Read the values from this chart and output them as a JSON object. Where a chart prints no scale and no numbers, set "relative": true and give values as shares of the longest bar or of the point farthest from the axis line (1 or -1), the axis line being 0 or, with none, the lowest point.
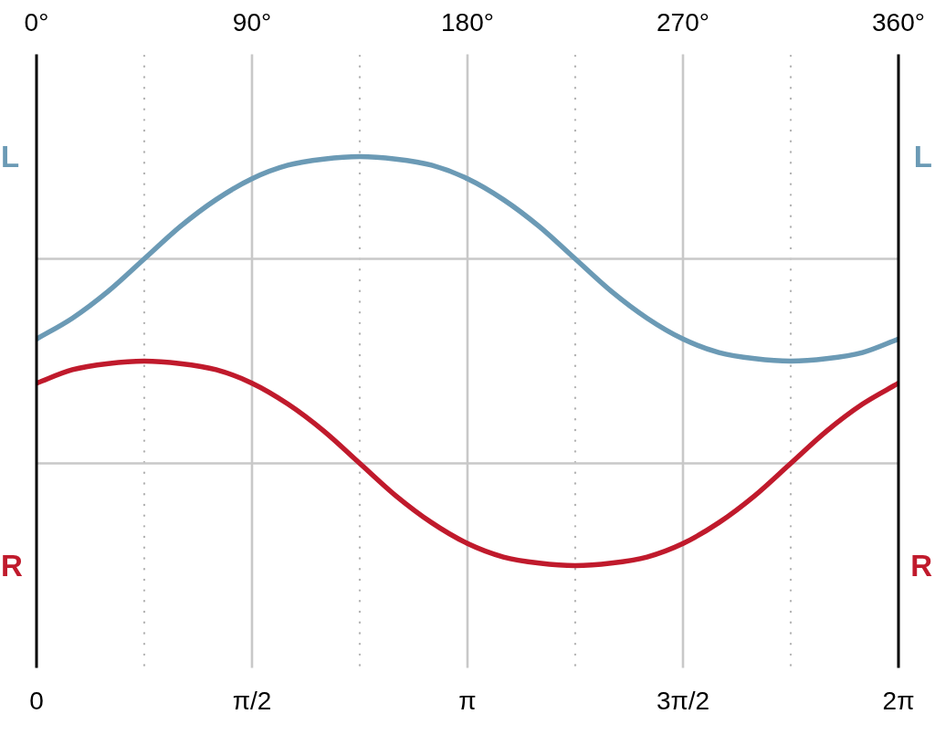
{
  "chart_data": {
    "type": "line",
    "x": [
      0,
      0.2618,
      0.5236,
      0.7854,
      1.0472,
      1.309,
      1.5708,
      1.8326,
      2.0944,
      2.3562,
      2.618,
      2.8798,
      3.1416,
      3.4034,
      3.6652,
      3.927,
      4.1888,
      4.4506,
      4.7124,
      4.9742,
      5.236,
      5.4978,
      5.7596,
      6.0214,
      6.2832
    ],
    "series": [
      {
        "name": "L",
        "color": "#6b9ab5",
        "values": [
          0.554,
          0.605,
          0.671,
          0.75,
          0.829,
          0.895,
          0.946,
          0.979,
          0.994,
          1,
          0.994,
          0.979,
          0.946,
          0.895,
          0.829,
          0.75,
          0.671,
          0.605,
          0.554,
          0.521,
          0.506,
          0.5,
          0.506,
          0.521,
          0.554
        ]
      },
      {
        "name": "R",
        "color": "#c01a2c",
        "values": [
          0.446,
          0.479,
          0.494,
          0.5,
          0.494,
          0.479,
          0.446,
          0.395,
          0.329,
          0.25,
          0.171,
          0.105,
          0.054,
          0.021,
          0.006,
          0,
          0.006,
          0.021,
          0.054,
          0.105,
          0.171,
          0.25,
          0.329,
          0.395,
          0.446
        ]
      }
    ],
    "relative": true,
    "xlim": [
      0,
      6.2832
    ],
    "xticks": [
      0,
      {
        "value": 0.7854,
        "label": null
      },
      {
        "value": 1.5708,
        "label": "π/2"
      },
      {
        "value": 2.3562,
        "label": null
      },
      {
        "value": 3.1416,
        "label": "π"
      },
      {
        "value": 3.927,
        "label": null
      },
      {
        "value": 4.7124,
        "label": "3π/2"
      },
      {
        "value": 5.4978,
        "label": null
      },
      {
        "value": 6.2832,
        "label": "2π"
      }
    ],
    "x2lim": [
      0,
      360
    ],
    "x2ticks": [
      {
        "value": 0,
        "label": "0°"
      },
      {
        "value": 90,
        "label": "90°"
      },
      {
        "value": 180,
        "label": "180°"
      },
      {
        "value": 270,
        "label": "270°"
      },
      {
        "value": 360,
        "label": "360°"
      }
    ],
    "grid": "x",
    "ref_lines": [
      {
        "axis": "y",
        "value": 0.75,
        "color": "#c8c8c8"
      },
      {
        "axis": "y",
        "value": 0.25,
        "color": "#c8c8c8"
      }
    ]
  }
}
